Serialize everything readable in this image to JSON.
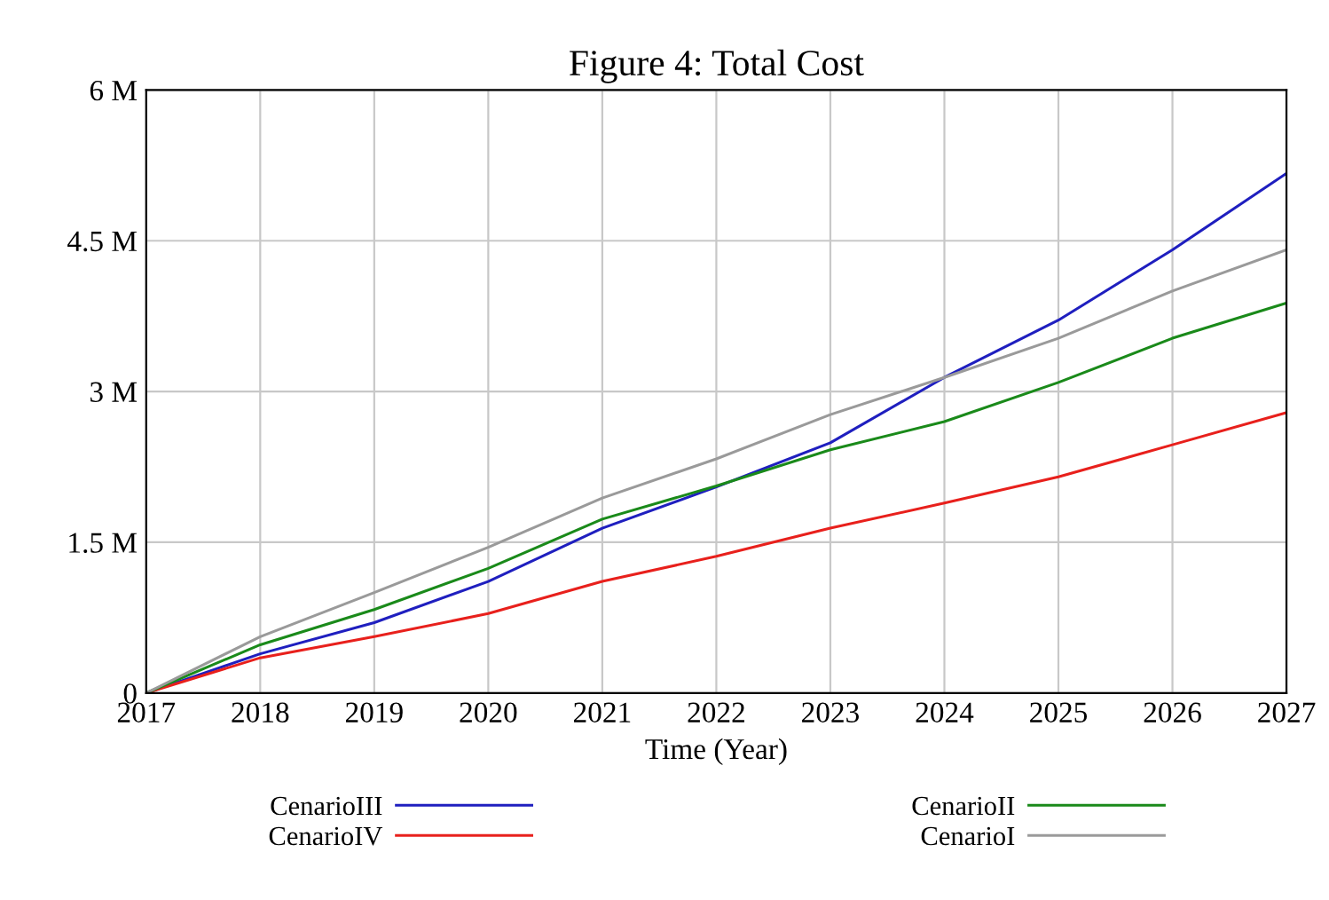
{
  "chart_data": {
    "type": "line",
    "title": "Figure 4: Total Cost",
    "xlabel": "Time (Year)",
    "x": [
      2017,
      2018,
      2019,
      2020,
      2021,
      2022,
      2023,
      2024,
      2025,
      2026,
      2027
    ],
    "series": [
      {
        "name": "CenarioIII",
        "color": "#1f1fbf",
        "values": [
          0,
          0.39,
          0.7,
          1.11,
          1.64,
          2.05,
          2.49,
          3.14,
          3.71,
          4.41,
          5.17
        ]
      },
      {
        "name": "CenarioIV",
        "color": "#e8201c",
        "values": [
          0,
          0.35,
          0.56,
          0.79,
          1.11,
          1.36,
          1.64,
          1.89,
          2.15,
          2.47,
          2.79
        ]
      },
      {
        "name": "CenarioII",
        "color": "#1a8a1a",
        "values": [
          0,
          0.48,
          0.83,
          1.24,
          1.73,
          2.06,
          2.42,
          2.7,
          3.09,
          3.53,
          3.88
        ]
      },
      {
        "name": "CenarioI",
        "color": "#9a9a9a",
        "values": [
          0,
          0.56,
          1.0,
          1.45,
          1.94,
          2.33,
          2.77,
          3.14,
          3.53,
          4.0,
          4.41
        ]
      }
    ],
    "xlim": [
      2017,
      2027
    ],
    "xticks": [
      2017,
      2018,
      2019,
      2020,
      2021,
      2022,
      2023,
      2024,
      2025,
      2026,
      2027
    ],
    "ylim": [
      0,
      6
    ],
    "yticks": [
      {
        "value": 0,
        "label": "0"
      },
      {
        "value": 1.5,
        "label": "1.5 M"
      },
      {
        "value": 3,
        "label": "3 M"
      },
      {
        "value": 4.5,
        "label": "4.5 M"
      },
      {
        "value": 6,
        "label": "6 M"
      }
    ],
    "grid": true,
    "legend": "bottom",
    "marker": "none",
    "line_style": "solid"
  }
}
